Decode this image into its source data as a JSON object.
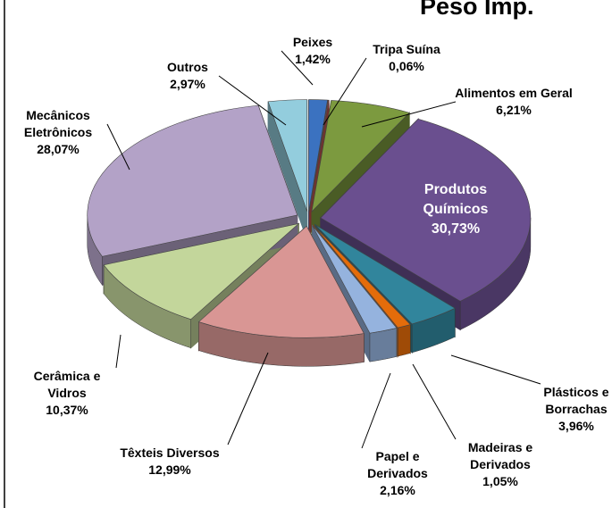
{
  "chart_data": {
    "type": "pie",
    "title": "Peso Imp.",
    "categories": [
      "Peixes",
      "Tripa Suína",
      "Alimentos em Geral",
      "Produtos Químicos",
      "Plásticos e Borrachas",
      "Madeiras e Derivados",
      "Papel e Derivados",
      "Têxteis Diversos",
      "Cerâmica e Vidros",
      "Mecânicos Eletrônicos",
      "Outros"
    ],
    "values": [
      1.42,
      0.06,
      6.21,
      30.73,
      3.96,
      1.05,
      2.16,
      12.99,
      10.37,
      28.07,
      2.97
    ],
    "value_labels": [
      "1,42%",
      "0,06%",
      "6,21%",
      "30,73%",
      "3,96%",
      "1,05%",
      "2,16%",
      "12,99%",
      "10,37%",
      "28,07%",
      "2,97%"
    ],
    "colors": [
      "#3b72c0",
      "#c0504d",
      "#7c9a3f",
      "#6a4f8f",
      "#31859c",
      "#e46c0a",
      "#95b3de",
      "#d99694",
      "#c3d69b",
      "#b3a2c7",
      "#93cddd"
    ]
  }
}
